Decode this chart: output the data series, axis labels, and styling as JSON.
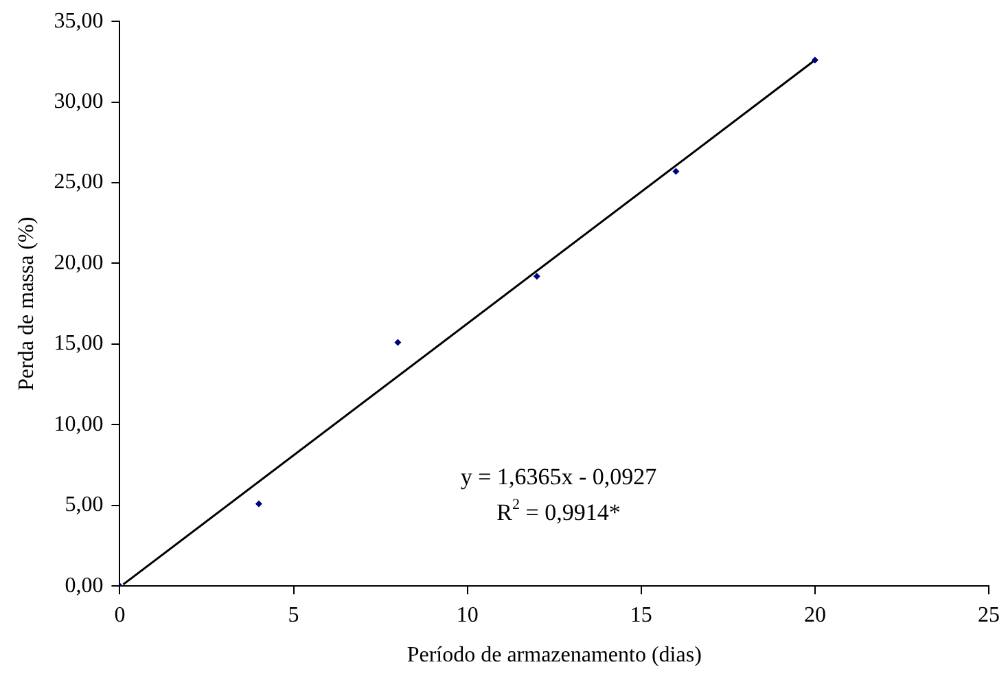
{
  "chart_data": {
    "type": "scatter",
    "xlabel": "Período de armazenamento (dias)",
    "ylabel": "Perda de massa (%)",
    "series": [
      {
        "color": "#000080",
        "x": [
          0,
          4,
          8,
          12,
          16,
          20
        ],
        "values": [
          0,
          5.1,
          15.1,
          19.2,
          25.7,
          32.6
        ],
        "marker": "diamond"
      },
      {
        "type": "line",
        "color": "#000000",
        "x": [
          0.1,
          20
        ],
        "values": [
          0.1,
          32.6
        ],
        "marker": "none"
      }
    ],
    "xlim": [
      0,
      25
    ],
    "xticks": [
      0,
      5,
      10,
      15,
      20,
      25
    ],
    "ylim": [
      0,
      35
    ],
    "yticks": [
      {
        "value": 0,
        "label": "0,00"
      },
      {
        "value": 5,
        "label": "5,00"
      },
      {
        "value": 10,
        "label": "10,00"
      },
      {
        "value": 15,
        "label": "15,00"
      },
      {
        "value": 20,
        "label": "20,00"
      },
      {
        "value": 25,
        "label": "25,00"
      },
      {
        "value": 30,
        "label": "30,00"
      },
      {
        "value": 35,
        "label": "35,00"
      }
    ],
    "grid": false,
    "legend": false,
    "annotations": [
      "y = 1,6365x - 0,0927",
      "R$^{2}$ = 0,9914*"
    ]
  }
}
